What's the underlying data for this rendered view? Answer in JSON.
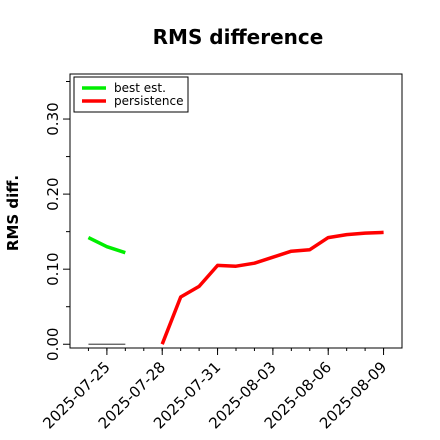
{
  "chart_data": {
    "type": "line",
    "title": "RMS difference",
    "xlabel": "",
    "ylabel": "RMS diff.",
    "ylim": [
      -0.005,
      0.36
    ],
    "yticks": [
      0.0,
      0.1,
      0.2,
      0.3
    ],
    "ytick_labels": [
      "0.00",
      "0.10",
      "0.20",
      "0.30"
    ],
    "x_start": "2025-07-23",
    "x_end": "2025-08-10",
    "xticks": [
      "2025-07-25",
      "2025-07-28",
      "2025-07-31",
      "2025-08-03",
      "2025-08-06",
      "2025-08-09"
    ],
    "grid": false,
    "legend_position": "top-left",
    "series": [
      {
        "name": "best est.",
        "color": "#00ee00",
        "x": [
          "2025-07-24",
          "2025-07-25",
          "2025-07-26"
        ],
        "y": [
          0.142,
          0.13,
          0.122
        ]
      },
      {
        "name": "persistence",
        "color": "#ff0000",
        "x": [
          "2025-07-28",
          "2025-07-29",
          "2025-07-30",
          "2025-07-31",
          "2025-08-01",
          "2025-08-02",
          "2025-08-03",
          "2025-08-04",
          "2025-08-05",
          "2025-08-06",
          "2025-08-07",
          "2025-08-08",
          "2025-08-09"
        ],
        "y": [
          0.0,
          0.063,
          0.077,
          0.105,
          0.104,
          0.108,
          0.116,
          0.124,
          0.126,
          0.142,
          0.146,
          0.148,
          0.149
        ]
      }
    ],
    "reference_segments": [
      {
        "color": "#555555",
        "x": [
          "2025-07-24",
          "2025-07-26"
        ],
        "y": [
          0.0,
          0.0
        ]
      }
    ]
  }
}
